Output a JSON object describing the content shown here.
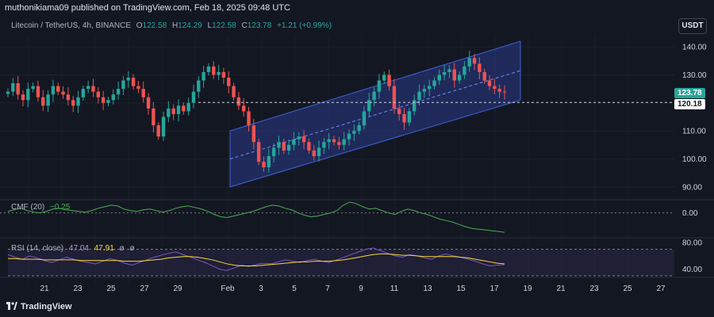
{
  "header": {
    "publisher_line": "muthonikiama09 published on TradingView.com, Feb 18, 2025 09:48 UTC"
  },
  "symbol": {
    "name": "Litecoin / TetherUS, 4h, BINANCE",
    "open_label": "O",
    "open": "122.58",
    "high_label": "H",
    "high": "124.29",
    "low_label": "L",
    "low": "122.58",
    "close_label": "C",
    "close": "123.78",
    "change": "+1.21 (+0.99%)"
  },
  "currency_button": "USDT",
  "price_axis": {
    "labels": [
      "140.00",
      "130.00",
      "110.00",
      "100.00",
      "90.00"
    ],
    "current_price": "123.78",
    "line_price": "120.18",
    "current_color": "#26a69a",
    "line_color": "#ffffff"
  },
  "cmf": {
    "label": "CMF (20)",
    "value": "−0.25",
    "axis_label": "0.00",
    "color": "#4caf50"
  },
  "rsi": {
    "label": "RSI (14, close)",
    "value1": "47.04",
    "value2": "47.91",
    "extra1": "ø",
    "extra2": "ø",
    "axis_labels": [
      "80.00",
      "40.00"
    ],
    "rsi_color": "#7e57c2",
    "ma_color": "#fdd835"
  },
  "time_axis": {
    "labels": [
      "21",
      "23",
      "25",
      "27",
      "29",
      "Feb",
      "3",
      "5",
      "7",
      "9",
      "11",
      "13",
      "15",
      "17",
      "19",
      "21",
      "23",
      "25",
      "27"
    ]
  },
  "footer": {
    "brand": "TradingView"
  },
  "colors": {
    "background": "#131722",
    "up": "#26a69a",
    "down": "#ef5350",
    "channel_fill": "#2a3a8a",
    "channel_line": "#3f63d8"
  },
  "chart_data": {
    "type": "candlestick",
    "title": "Litecoin / TetherUS, 4h, BINANCE",
    "ylim": [
      86,
      144
    ],
    "yticks": [
      90,
      100,
      110,
      120,
      130,
      140
    ],
    "x_range_days": [
      "Jan 20",
      "Feb 28"
    ],
    "price_path_close": [
      124,
      127,
      123,
      121,
      125,
      126,
      122,
      119,
      123,
      126,
      124,
      123,
      121,
      119,
      122,
      125,
      126,
      124,
      122,
      120,
      121,
      123,
      125,
      128,
      129,
      126,
      125,
      122,
      118,
      112,
      108,
      115,
      118,
      116,
      119,
      117,
      120,
      124,
      128,
      131,
      133,
      130,
      131,
      129,
      126,
      122,
      119,
      117,
      112,
      106,
      99,
      97,
      101,
      104,
      106,
      103,
      105,
      107,
      108,
      106,
      103,
      101,
      104,
      106,
      107,
      106,
      105,
      107,
      109,
      110,
      112,
      117,
      121,
      124,
      128,
      130,
      126,
      118,
      116,
      113,
      117,
      121,
      124,
      125,
      126,
      128,
      130,
      131,
      132,
      128,
      130,
      133,
      136,
      134,
      131,
      128,
      126,
      125,
      124,
      123.78
    ],
    "channel": {
      "start": "Feb 3",
      "end": "Feb 19",
      "lower_start": 90,
      "lower_end": 121,
      "upper_start": 110,
      "upper_end": 142
    },
    "horizontal_line": 120.18,
    "cmf_range": [
      -0.3,
      0.15
    ],
    "cmf_values": [
      0.02,
      0.04,
      0.06,
      0.03,
      0.01,
      0.0,
      0.02,
      0.05,
      0.06,
      0.04,
      0.03,
      0.02,
      0.01,
      0.03,
      0.06,
      0.08,
      0.1,
      0.09,
      0.05,
      0.03,
      0.02,
      0.04,
      0.05,
      0.03,
      0.01,
      0.03,
      0.06,
      0.08,
      0.09,
      0.07,
      0.05,
      0.02,
      -0.02,
      -0.05,
      -0.06,
      -0.04,
      -0.02,
      0.0,
      0.02,
      0.05,
      0.08,
      0.1,
      0.09,
      0.06,
      0.04,
      0.0,
      -0.03,
      -0.05,
      -0.04,
      -0.02,
      0.0,
      0.03,
      0.1,
      0.14,
      0.12,
      0.08,
      0.05,
      0.06,
      0.03,
      0.0,
      -0.02,
      0.02,
      0.05,
      0.03,
      0.0,
      -0.02,
      -0.05,
      -0.08,
      -0.1,
      -0.12,
      -0.15,
      -0.18,
      -0.2,
      -0.21,
      -0.22,
      -0.23,
      -0.24,
      -0.25
    ],
    "rsi_range": [
      30,
      85
    ],
    "rsi_values": [
      62,
      58,
      55,
      60,
      57,
      53,
      50,
      54,
      58,
      55,
      52,
      50,
      48,
      52,
      56,
      53,
      49,
      46,
      50,
      54,
      58,
      61,
      64,
      66,
      62,
      58,
      54,
      50,
      45,
      40,
      38,
      42,
      46,
      44,
      47,
      49,
      48,
      51,
      54,
      52,
      50,
      53,
      55,
      52,
      50,
      54,
      58,
      62,
      66,
      70,
      72,
      68,
      64,
      60,
      58,
      62,
      60,
      57,
      55,
      60,
      63,
      60,
      58,
      55,
      52,
      48,
      45,
      46,
      47.04
    ],
    "rsi_ma_values": [
      56,
      56,
      55,
      55,
      55,
      54,
      54,
      54,
      54,
      54,
      53,
      53,
      53,
      53,
      53,
      53,
      52,
      52,
      52,
      53,
      54,
      55,
      57,
      58,
      59,
      59,
      58,
      56,
      54,
      51,
      48,
      46,
      45,
      45,
      45,
      46,
      47,
      48,
      49,
      50,
      51,
      51,
      52,
      52,
      52,
      53,
      54,
      56,
      58,
      60,
      62,
      63,
      63,
      62,
      61,
      61,
      60,
      59,
      59,
      59,
      59,
      59,
      58,
      57,
      55,
      53,
      51,
      49,
      47.91
    ]
  }
}
